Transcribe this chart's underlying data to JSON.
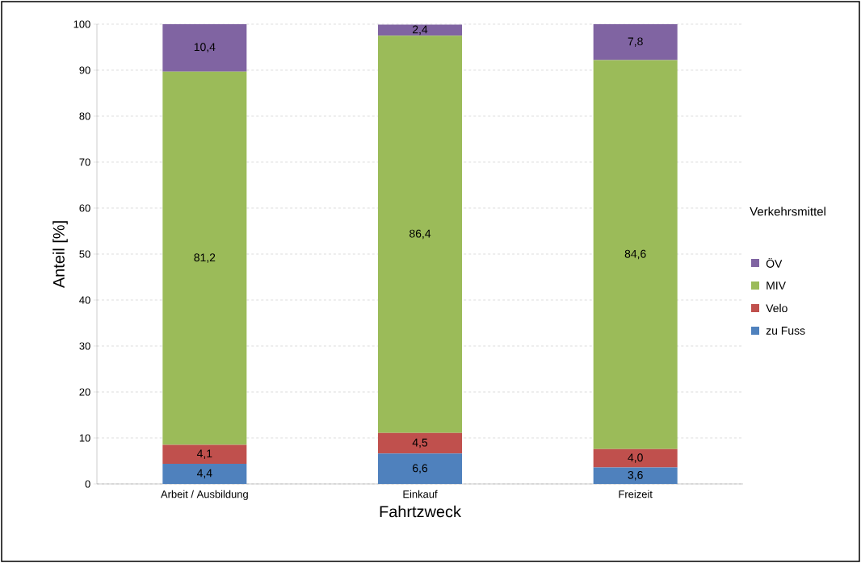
{
  "chart_data": {
    "type": "bar",
    "stacked": true,
    "xlabel": "Fahrtzweck",
    "ylabel": "Anteil [%]",
    "legend_title": "Verkehrsmittel",
    "legend": "right",
    "grid": "y",
    "categories": [
      "Arbeit / Ausbildung",
      "Einkauf",
      "Freizeit"
    ],
    "ylim": [
      0,
      100
    ],
    "yticks": [
      0,
      10,
      20,
      30,
      40,
      50,
      60,
      70,
      80,
      90,
      100
    ],
    "series": [
      {
        "name": "zu Fuss",
        "color": "#4f81bd",
        "values": [
          4.4,
          6.6,
          3.6
        ],
        "value_labels": [
          "4,4",
          "6,6",
          "3,6"
        ]
      },
      {
        "name": "Velo",
        "color": "#c0504d",
        "values": [
          4.1,
          4.5,
          4.0
        ],
        "value_labels": [
          "4,1",
          "4,5",
          "4,0"
        ]
      },
      {
        "name": "MIV",
        "color": "#9bbb59",
        "values": [
          81.2,
          86.4,
          84.6
        ],
        "value_labels": [
          "81,2",
          "86,4",
          "84,6"
        ]
      },
      {
        "name": "ÖV",
        "color": "#8064a2",
        "values": [
          10.4,
          2.4,
          7.8
        ],
        "value_labels": [
          "10,4",
          "2,4",
          "7,8"
        ]
      }
    ]
  }
}
